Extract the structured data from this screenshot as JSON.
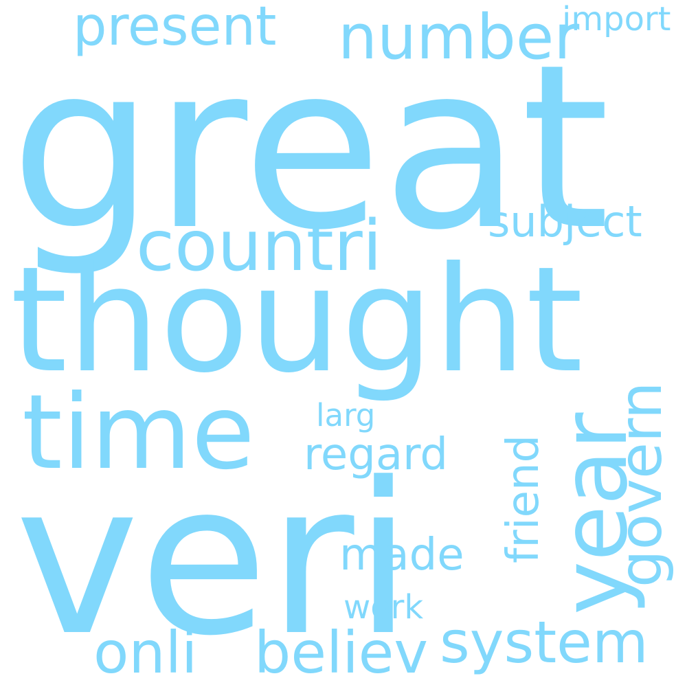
{
  "colors": {
    "background": "#ffffff",
    "word": "#81d8fc"
  },
  "words": [
    {
      "id": "great",
      "text": "great"
    },
    {
      "id": "thought",
      "text": "thought"
    },
    {
      "id": "veri",
      "text": "veri"
    },
    {
      "id": "time",
      "text": "time"
    },
    {
      "id": "countri",
      "text": "countri"
    },
    {
      "id": "number",
      "text": "number"
    },
    {
      "id": "present",
      "text": "present"
    },
    {
      "id": "import",
      "text": "import"
    },
    {
      "id": "subject",
      "text": "subject"
    },
    {
      "id": "year",
      "text": "year"
    },
    {
      "id": "govern",
      "text": "govern"
    },
    {
      "id": "friend",
      "text": "friend"
    },
    {
      "id": "regard",
      "text": "regard"
    },
    {
      "id": "larg",
      "text": "larg"
    },
    {
      "id": "made",
      "text": "made"
    },
    {
      "id": "work",
      "text": "work"
    },
    {
      "id": "onli",
      "text": "onli"
    },
    {
      "id": "believ",
      "text": "believ"
    },
    {
      "id": "system",
      "text": "system"
    }
  ]
}
